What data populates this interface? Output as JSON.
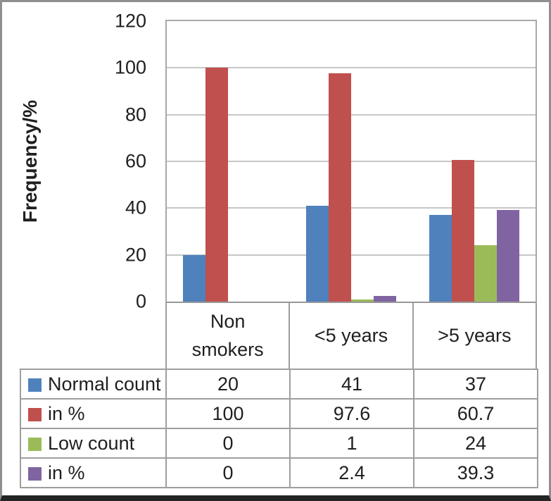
{
  "chart_data": {
    "type": "bar",
    "title": "",
    "xlabel": "",
    "ylabel": "Frequency/%",
    "ylim": [
      0,
      120
    ],
    "yticks": [
      0,
      20,
      40,
      60,
      80,
      100,
      120
    ],
    "grid": true,
    "legend_position": "data-table-left-column",
    "categories": [
      "Non smokers",
      "<5 years",
      ">5 years"
    ],
    "series": [
      {
        "name": "Normal count",
        "color": "#4F81BD",
        "values": [
          20,
          41,
          37
        ]
      },
      {
        "name": "in %",
        "color": "#C0504D",
        "values": [
          100,
          97.6,
          60.7
        ]
      },
      {
        "name": "Low count",
        "color": "#9BBB59",
        "values": [
          0,
          1,
          24
        ]
      },
      {
        "name": "in %",
        "color": "#8064A2",
        "values": [
          0,
          2.4,
          39.3
        ]
      }
    ],
    "data_table": {
      "shown": true,
      "rows": [
        {
          "label": "Normal count",
          "cells": [
            "20",
            "41",
            "37"
          ]
        },
        {
          "label": "in %",
          "cells": [
            "100",
            "97.6",
            "60.7"
          ]
        },
        {
          "label": "Low count",
          "cells": [
            "0",
            "1",
            "24"
          ]
        },
        {
          "label": "in %",
          "cells": [
            "0",
            "2.4",
            "39.3"
          ]
        }
      ]
    },
    "colors": {
      "plot_border": "#a8a8a8",
      "gridline": "#c6c6c6",
      "table_border": "#9e9e9e",
      "text": "#1f1f1f"
    }
  }
}
